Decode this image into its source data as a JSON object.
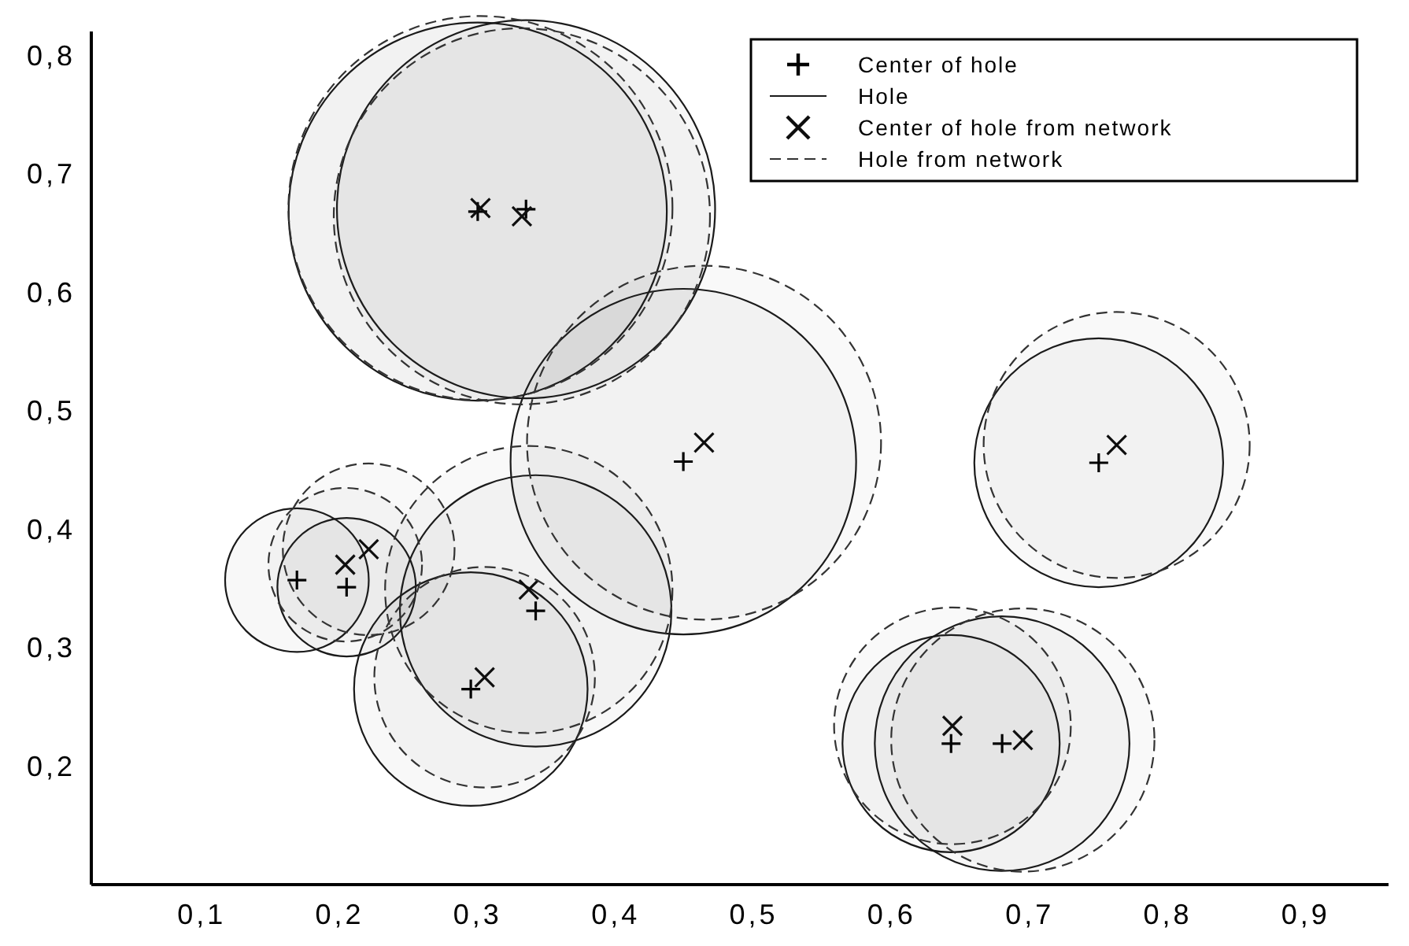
{
  "chart_data": {
    "type": "bubble",
    "xlim": [
      0.02,
      0.96
    ],
    "ylim": [
      0.1,
      0.82
    ],
    "xticks": [
      {
        "value": 0.1,
        "label": "0,1"
      },
      {
        "value": 0.2,
        "label": "0,2"
      },
      {
        "value": 0.3,
        "label": "0,3"
      },
      {
        "value": 0.4,
        "label": "0,4"
      },
      {
        "value": 0.5,
        "label": "0,5"
      },
      {
        "value": 0.6,
        "label": "0,6"
      },
      {
        "value": 0.7,
        "label": "0,7"
      },
      {
        "value": 0.8,
        "label": "0,8"
      },
      {
        "value": 0.9,
        "label": "0,9"
      }
    ],
    "yticks": [
      {
        "value": 0.2,
        "label": "0,2"
      },
      {
        "value": 0.3,
        "label": "0,3"
      },
      {
        "value": 0.4,
        "label": "0,4"
      },
      {
        "value": 0.5,
        "label": "0,5"
      },
      {
        "value": 0.6,
        "label": "0,6"
      },
      {
        "value": 0.7,
        "label": "0,7"
      },
      {
        "value": 0.8,
        "label": "0,8"
      }
    ],
    "grid": false,
    "legend": "top right",
    "series": [
      {
        "name": "Center of hole",
        "type": "scatter",
        "color": "#000000",
        "x": [
          0.3,
          0.335,
          0.449,
          0.75,
          0.643,
          0.68,
          0.342,
          0.295,
          0.169,
          0.205
        ],
        "values": [
          0.668,
          0.67,
          0.457,
          0.456,
          0.219,
          0.219,
          0.331,
          0.265,
          0.357,
          0.351
        ]
      },
      {
        "name": "Hole",
        "line_style": "solid",
        "color": "#1a1a1a",
        "x": [
          0.3,
          0.335,
          0.449,
          0.75,
          0.643,
          0.68,
          0.342,
          0.295,
          0.169,
          0.205
        ],
        "values": [
          0.668,
          0.67,
          0.457,
          0.456,
          0.219,
          0.219,
          0.331,
          0.265,
          0.357,
          0.351
        ],
        "sizes": [
          0.97,
          0.97,
          0.81,
          0.42,
          0.32,
          0.44,
          0.5,
          0.37,
          0.14,
          0.13
        ]
      },
      {
        "name": "Center of hole from network",
        "type": "scatter",
        "marker": "cross",
        "color": "#0d0d0d",
        "x": [
          0.302,
          0.332,
          0.464,
          0.763,
          0.644,
          0.695,
          0.337,
          0.305,
          0.204,
          0.221
        ],
        "values": [
          0.671,
          0.664,
          0.473,
          0.471,
          0.234,
          0.222,
          0.349,
          0.275,
          0.37,
          0.383
        ]
      },
      {
        "name": "Hole from network",
        "line_style": "dashed",
        "color": "#333333",
        "x": [
          0.302,
          0.332,
          0.464,
          0.763,
          0.644,
          0.695,
          0.337,
          0.305,
          0.204,
          0.221
        ],
        "values": [
          0.671,
          0.664,
          0.473,
          0.471,
          0.234,
          0.222,
          0.349,
          0.275,
          0.37,
          0.383
        ],
        "sizes": [
          1,
          0.96,
          0.85,
          0.48,
          0.38,
          0.47,
          0.56,
          0.33,
          0.16,
          0.2
        ]
      }
    ]
  }
}
